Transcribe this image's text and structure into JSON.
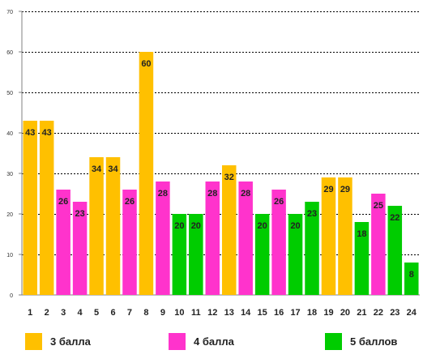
{
  "chart_data": {
    "type": "bar",
    "categories": [
      "1",
      "2",
      "3",
      "4",
      "5",
      "6",
      "7",
      "8",
      "9",
      "10",
      "11",
      "12",
      "13",
      "14",
      "15",
      "16",
      "17",
      "18",
      "19",
      "20",
      "21",
      "22",
      "23",
      "24"
    ],
    "values": [
      43,
      43,
      26,
      23,
      34,
      34,
      26,
      60,
      28,
      20,
      20,
      28,
      32,
      28,
      20,
      26,
      20,
      23,
      29,
      29,
      18,
      25,
      22,
      8
    ],
    "groups": [
      "3 балла",
      "3 балла",
      "4 балла",
      "4 балла",
      "3 балла",
      "3 балла",
      "4 балла",
      "3 балла",
      "4 балла",
      "5 баллов",
      "5 баллов",
      "4 балла",
      "3 балла",
      "4 балла",
      "5 баллов",
      "4 балла",
      "5 баллов",
      "5 баллов",
      "3 балла",
      "3 балла",
      "5 баллов",
      "4 балла",
      "5 баллов",
      "5 баллов"
    ],
    "yticks": [
      "0",
      "10",
      "20",
      "30",
      "40",
      "50",
      "60",
      "70"
    ],
    "ylim": [
      0,
      70
    ],
    "grid": true,
    "legend_position": "bottom",
    "title": "",
    "xlabel": "",
    "ylabel": ""
  },
  "legend": [
    {
      "label": "3 балла",
      "color": "#FFC000"
    },
    {
      "label": "4 балла",
      "color": "#FF33CC"
    },
    {
      "label": "5 баллов",
      "color": "#00CC00"
    }
  ]
}
